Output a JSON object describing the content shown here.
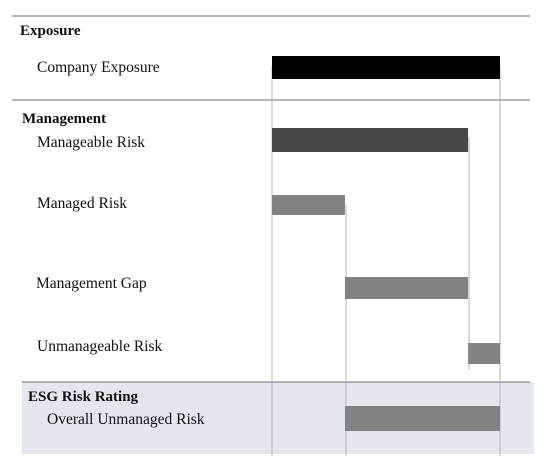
{
  "sections": {
    "exposure": {
      "title": "Exposure"
    },
    "management": {
      "title": "Management"
    },
    "esg": {
      "title": "ESG Risk Rating"
    }
  },
  "rows": [
    {
      "label": "Company Exposure",
      "start": 0,
      "end": 100,
      "color": "#000000"
    },
    {
      "label": "Manageable Risk",
      "start": 0,
      "end": 86,
      "color": "#474747"
    },
    {
      "label": "Managed Risk",
      "start": 0,
      "end": 32,
      "color": "#828282"
    },
    {
      "label": "Management Gap",
      "start": 32,
      "end": 86,
      "color": "#828282"
    },
    {
      "label": "Unmanageable Risk",
      "start": 86,
      "end": 100,
      "color": "#828282"
    },
    {
      "label": "Overall Unmanaged Risk",
      "start": 32,
      "end": 100,
      "color": "#828282"
    }
  ],
  "colors": {
    "esg_background": "#e4e8ee",
    "divider": "#6e6e6e",
    "guide_line": "#b5b5b5"
  }
}
